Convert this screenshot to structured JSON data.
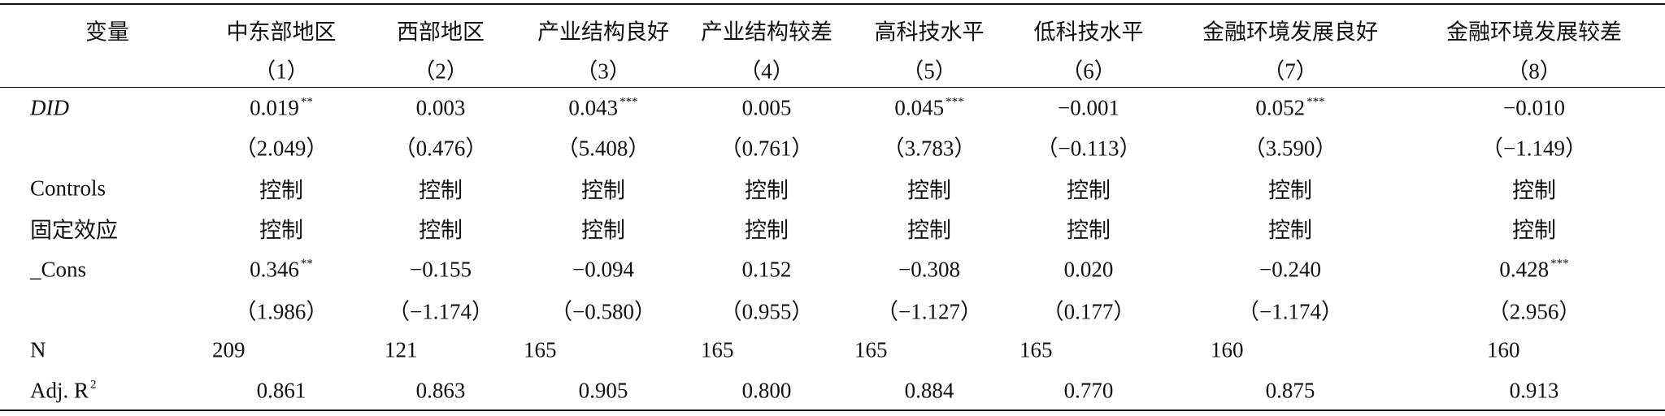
{
  "header": {
    "columns": [
      "变量",
      "中东部地区",
      "西部地区",
      "产业结构良好",
      "产业结构较差",
      "高科技水平",
      "低科技水平",
      "金融环境发展良好",
      "金融环境发展较差"
    ],
    "numbers": [
      "（1）",
      "（2）",
      "（3）",
      "（4）",
      "（5）",
      "（6）",
      "（7）",
      "（8）"
    ]
  },
  "table": {
    "rows": [
      {
        "label": "DID",
        "cells": [
          {
            "text": "0.019",
            "sup": "**"
          },
          "0.003",
          {
            "text": "0.043",
            "sup": "***"
          },
          "0.005",
          {
            "text": "0.045",
            "sup": "***"
          },
          "−0.001",
          {
            "text": "0.052",
            "sup": "***"
          },
          "−0.010"
        ]
      },
      {
        "cells": [
          "（2.049）",
          "（0.476）",
          "（5.408）",
          "（0.761）",
          "（3.783）",
          "（−0.113）",
          "（3.590）",
          "（−1.149）"
        ]
      },
      {
        "label": "Controls",
        "cells": [
          "控制",
          "控制",
          "控制",
          "控制",
          "控制",
          "控制",
          "控制",
          "控制"
        ]
      },
      {
        "label": "固定效应",
        "cells": [
          "控制",
          "控制",
          "控制",
          "控制",
          "控制",
          "控制",
          "控制",
          "控制"
        ]
      },
      {
        "label": "_Cons",
        "cells": [
          {
            "text": "0.346",
            "sup": "**"
          },
          "−0.155",
          "−0.094",
          "0.152",
          "−0.308",
          "0.020",
          "−0.240",
          {
            "text": "0.428",
            "sup": "***"
          }
        ]
      },
      {
        "cells": [
          "（1.986）",
          "（−1.174）",
          "（−0.580）",
          "（0.955）",
          "（−1.127）",
          "（0.177）",
          "（−1.174）",
          "（2.956）"
        ]
      },
      {
        "label": "N",
        "cells": [
          "209",
          "121",
          "165",
          "165",
          "165",
          "165",
          "160",
          "160"
        ]
      },
      {
        "label": {
          "text": "Adj. R",
          "sup": "2"
        },
        "cells": [
          "0.861",
          "0.863",
          "0.905",
          "0.800",
          "0.884",
          "0.770",
          "0.875",
          "0.913"
        ]
      }
    ]
  }
}
